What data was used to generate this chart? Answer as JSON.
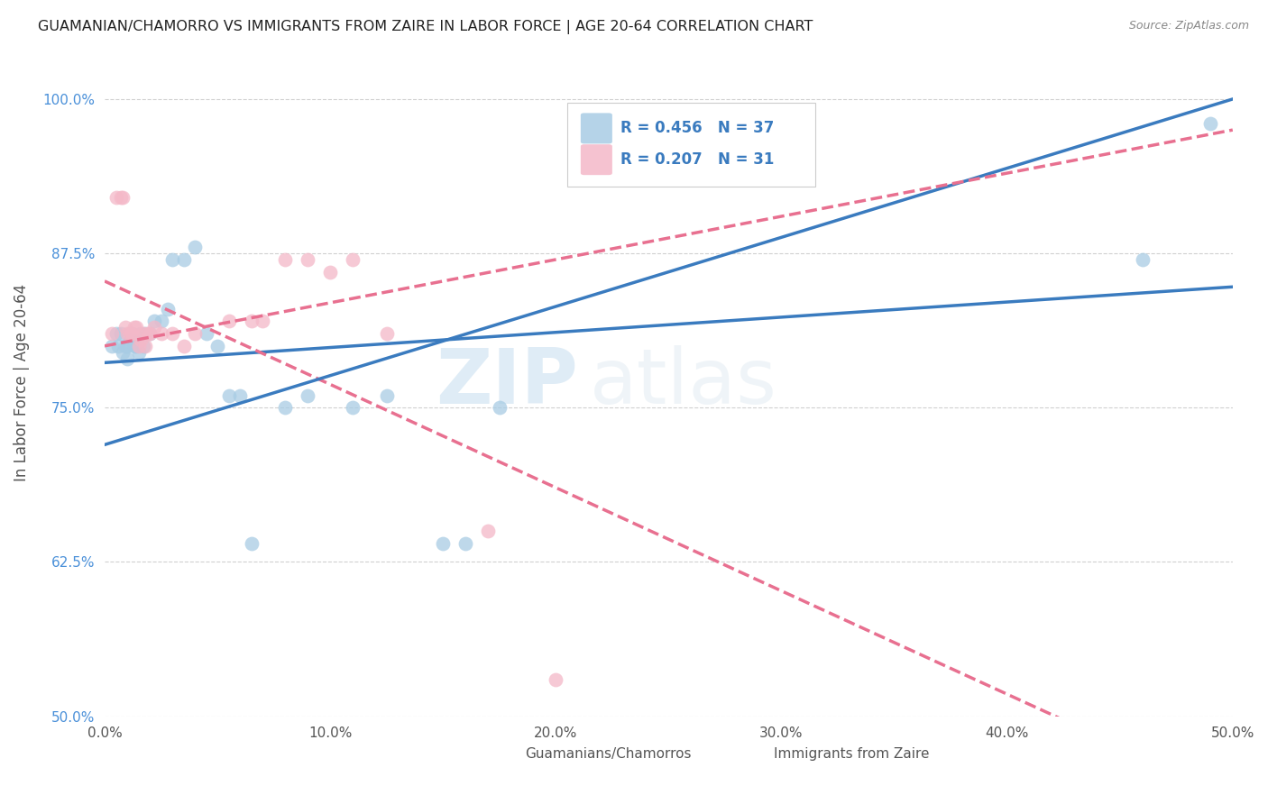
{
  "title": "GUAMANIAN/CHAMORRO VS IMMIGRANTS FROM ZAIRE IN LABOR FORCE | AGE 20-64 CORRELATION CHART",
  "source": "Source: ZipAtlas.com",
  "ylabel": "In Labor Force | Age 20-64",
  "xlim": [
    0.0,
    0.5
  ],
  "ylim": [
    0.5,
    1.04
  ],
  "xticks": [
    0.0,
    0.1,
    0.2,
    0.3,
    0.4,
    0.5
  ],
  "xticklabels": [
    "0.0%",
    "10.0%",
    "20.0%",
    "30.0%",
    "40.0%",
    "50.0%"
  ],
  "yticks": [
    0.5,
    0.625,
    0.75,
    0.875,
    1.0
  ],
  "yticklabels": [
    "50.0%",
    "62.5%",
    "75.0%",
    "87.5%",
    "100.0%"
  ],
  "blue_color": "#a8cce4",
  "pink_color": "#f4b8c8",
  "blue_line_color": "#3a7bbf",
  "pink_line_color": "#e87090",
  "R_blue": 0.456,
  "N_blue": 37,
  "R_pink": 0.207,
  "N_pink": 31,
  "legend_label_blue": "Guamanians/Chamorros",
  "legend_label_pink": "Immigrants from Zaire",
  "watermark_zip": "ZIP",
  "watermark_atlas": "atlas",
  "blue_scatter_x": [
    0.003,
    0.005,
    0.006,
    0.007,
    0.008,
    0.009,
    0.01,
    0.01,
    0.011,
    0.012,
    0.013,
    0.014,
    0.015,
    0.016,
    0.017,
    0.018,
    0.02,
    0.022,
    0.025,
    0.028,
    0.03,
    0.035,
    0.04,
    0.045,
    0.05,
    0.055,
    0.06,
    0.065,
    0.08,
    0.09,
    0.11,
    0.125,
    0.15,
    0.16,
    0.175,
    0.46,
    0.49
  ],
  "blue_scatter_y": [
    0.8,
    0.81,
    0.8,
    0.81,
    0.795,
    0.8,
    0.79,
    0.8,
    0.805,
    0.81,
    0.8,
    0.8,
    0.795,
    0.81,
    0.8,
    0.81,
    0.81,
    0.82,
    0.82,
    0.83,
    0.87,
    0.87,
    0.88,
    0.81,
    0.8,
    0.76,
    0.76,
    0.64,
    0.75,
    0.76,
    0.75,
    0.76,
    0.64,
    0.64,
    0.75,
    0.87,
    0.98
  ],
  "pink_scatter_x": [
    0.003,
    0.005,
    0.007,
    0.008,
    0.009,
    0.01,
    0.011,
    0.012,
    0.013,
    0.014,
    0.015,
    0.016,
    0.017,
    0.018,
    0.019,
    0.02,
    0.022,
    0.025,
    0.03,
    0.035,
    0.04,
    0.055,
    0.065,
    0.07,
    0.08,
    0.09,
    0.1,
    0.11,
    0.125,
    0.17,
    0.2
  ],
  "pink_scatter_y": [
    0.81,
    0.92,
    0.92,
    0.92,
    0.815,
    0.81,
    0.81,
    0.81,
    0.815,
    0.815,
    0.8,
    0.805,
    0.81,
    0.8,
    0.81,
    0.81,
    0.815,
    0.81,
    0.81,
    0.8,
    0.81,
    0.82,
    0.82,
    0.82,
    0.87,
    0.87,
    0.86,
    0.87,
    0.81,
    0.65,
    0.53
  ],
  "grid_color": "#d0d0d0",
  "background_color": "#ffffff",
  "title_color": "#222222",
  "axis_label_color": "#555555",
  "tick_color_y": "#4a90d9",
  "tick_color_x": "#555555",
  "legend_text_color": "#3a7bbf",
  "source_color": "#888888"
}
